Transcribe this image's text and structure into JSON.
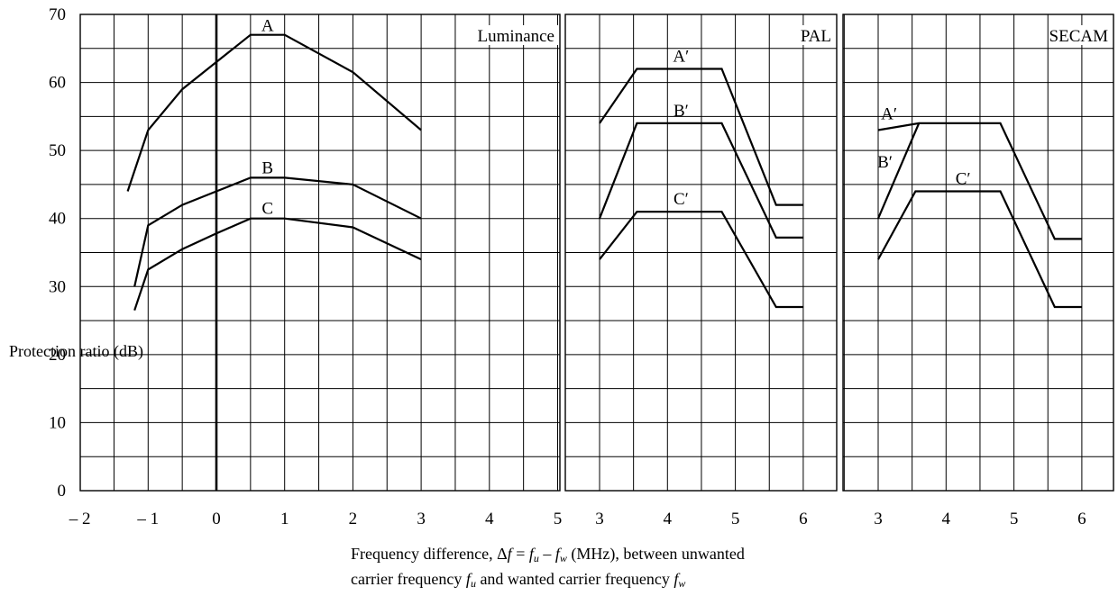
{
  "chart_data": {
    "type": "line",
    "ylabel": "Protection ratio (dB)",
    "ylim": [
      0,
      70
    ],
    "y_ticks": [
      "0",
      "10",
      "20",
      "30",
      "40",
      "50",
      "60",
      "70"
    ],
    "xlabel": {
      "part1": "Frequency difference, Δ",
      "f": "f",
      "eq": " = ",
      "u": "u",
      "minus": " – ",
      "w": "w",
      "part2": " (MHz), between unwanted",
      "part3": "carrier frequency ",
      "part4": " and wanted carrier frequency "
    },
    "panels": [
      {
        "title": "Luminance",
        "xlim": [
          -2,
          5
        ],
        "x_ticks": [
          "– 2",
          "– 1",
          "0",
          "1",
          "2",
          "3",
          "4",
          "5"
        ],
        "zero_line_x": 0,
        "series": [
          {
            "name": "A",
            "x": [
              -1.3,
              -1,
              -0.5,
              0,
              0.5,
              1,
              2,
              3
            ],
            "y": [
              44,
              53,
              59,
              63,
              67,
              67,
              61.5,
              53
            ]
          },
          {
            "name": "B",
            "x": [
              -1.2,
              -1,
              -0.5,
              0,
              0.5,
              1,
              2,
              3
            ],
            "y": [
              30,
              39,
              42,
              44,
              46,
              46,
              45,
              40
            ]
          },
          {
            "name": "C",
            "x": [
              -1.2,
              -1,
              -0.5,
              0,
              0.5,
              1,
              2,
              3
            ],
            "y": [
              26.5,
              32.5,
              35.5,
              37.8,
              40,
              40,
              38.7,
              34
            ]
          }
        ]
      },
      {
        "title": "PAL",
        "xlim": [
          3,
          6.3
        ],
        "x_ticks": [
          "3",
          "4",
          "5",
          "6"
        ],
        "series": [
          {
            "name": "A′",
            "x": [
              3,
              3.55,
              4.8,
              5.6,
              6
            ],
            "y": [
              54,
              62,
              62,
              42,
              42
            ]
          },
          {
            "name": "B′",
            "x": [
              3,
              3.55,
              4.8,
              5.6,
              6
            ],
            "y": [
              40,
              54,
              54,
              37.2,
              37.2
            ]
          },
          {
            "name": "C′",
            "x": [
              3,
              3.55,
              4.8,
              5.6,
              6
            ],
            "y": [
              34,
              41,
              41,
              27,
              27
            ]
          }
        ]
      },
      {
        "title": "SECAM",
        "xlim": [
          3,
          6.3
        ],
        "x_ticks": [
          "3",
          "4",
          "5",
          "6"
        ],
        "series": [
          {
            "name": "A′",
            "x": [
              3,
              3.6,
              4.8,
              5.6,
              6
            ],
            "y": [
              53,
              54,
              54,
              37,
              37
            ]
          },
          {
            "name": "B′",
            "x": [
              3,
              3.6
            ],
            "y": [
              40,
              54
            ]
          },
          {
            "name": "C′",
            "x": [
              3,
              3.55,
              4.8,
              5.6,
              6
            ],
            "y": [
              34,
              44,
              44,
              27,
              27
            ]
          }
        ]
      }
    ]
  }
}
